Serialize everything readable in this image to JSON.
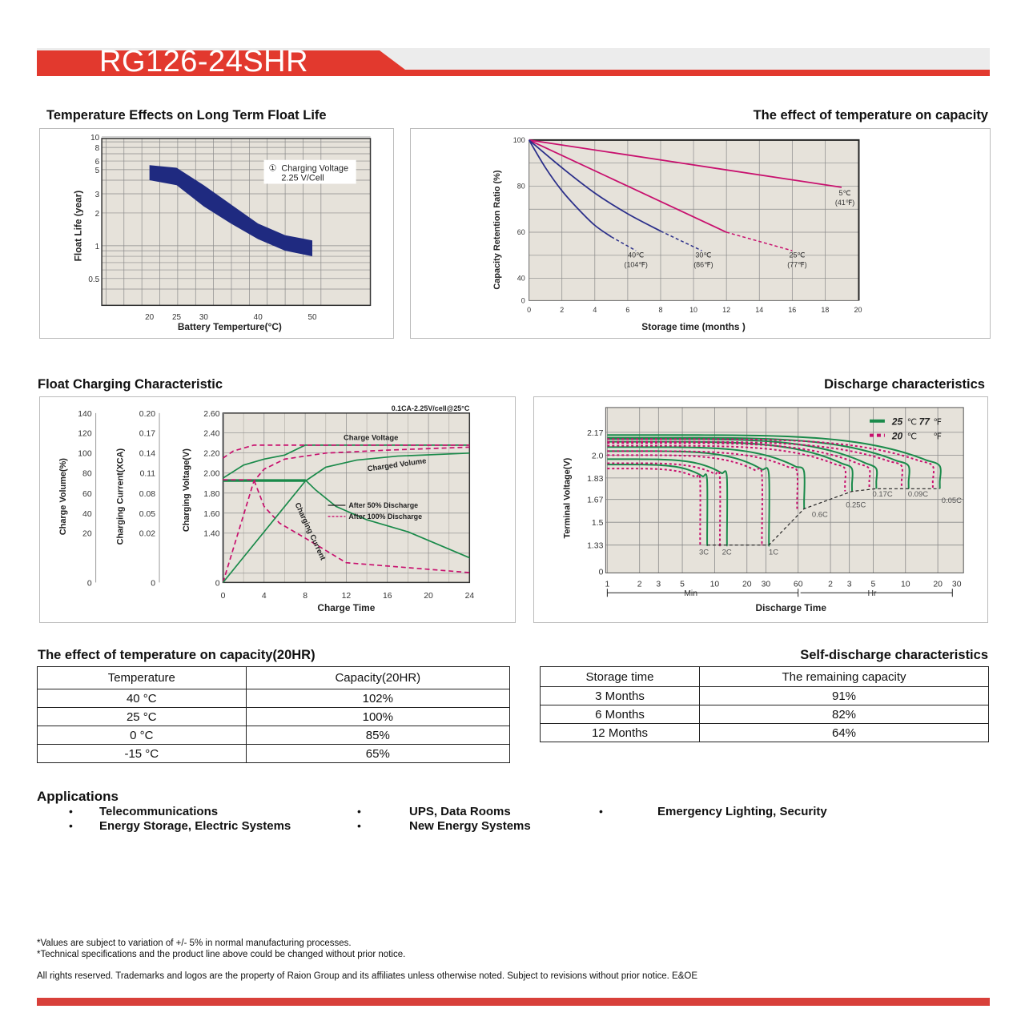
{
  "header": {
    "title": "RG126-24SHR",
    "accent": "#e2392e"
  },
  "sections": {
    "float_life_title": "Temperature Effects on Long Term Float Life",
    "temp_capacity_title": "The effect of temperature on capacity",
    "float_charging_title": "Float Charging Characteristic",
    "discharge_title": "Discharge characteristics",
    "temp_capacity_20hr_title": "The effect of temperature on capacity(20HR)",
    "self_discharge_title": "Self-discharge characteristics"
  },
  "chart_data": [
    {
      "type": "area",
      "title": "Temperature Effects on Long Term Float Life",
      "xlabel": "Battery Temperture(°C)",
      "ylabel": "Float Life (year)",
      "yscale": "log",
      "xticks": [
        20,
        25,
        30,
        40,
        50
      ],
      "yticks": [
        10,
        8,
        6,
        5,
        3,
        2,
        1,
        0.5
      ],
      "annotation_num": "①",
      "annotation": "Charging Voltage",
      "annotation2": "2.25 V/Cell",
      "upper": [
        [
          20,
          5.5
        ],
        [
          25,
          5.2
        ],
        [
          30,
          3.6
        ],
        [
          35,
          2.4
        ],
        [
          40,
          1.6
        ],
        [
          45,
          1.25
        ],
        [
          50,
          1.12
        ]
      ],
      "lower": [
        [
          20,
          4.0
        ],
        [
          25,
          3.6
        ],
        [
          30,
          2.3
        ],
        [
          35,
          1.6
        ],
        [
          40,
          1.15
        ],
        [
          45,
          0.9
        ],
        [
          50,
          0.8
        ]
      ],
      "color": "#1f2a80"
    },
    {
      "type": "line",
      "title": "The effect of temperature on capacity",
      "xlabel": "Storage time (months )",
      "ylabel": "Capacity Retention Ratio (%)",
      "xticks": [
        0,
        2,
        4,
        6,
        8,
        10,
        12,
        14,
        16,
        18,
        20
      ],
      "yticks": [
        100,
        80,
        60,
        40,
        0
      ],
      "series": [
        {
          "name": "5℃",
          "name2": "(41℉)",
          "color": "#c8106e",
          "solid": [
            [
              0,
              100
            ],
            [
              19,
              79.5
            ]
          ],
          "dashed": [],
          "label_at": [
            19.2,
            76
          ]
        },
        {
          "name": "25℃",
          "name2": "(77℉)",
          "color": "#c8106e",
          "solid": [
            [
              0,
              100
            ],
            [
              12,
              60
            ]
          ],
          "dashed": [
            [
              12,
              60
            ],
            [
              16,
              52
            ]
          ],
          "label_at": [
            16.3,
            49
          ]
        },
        {
          "name": "30℃",
          "name2": "(86℉)",
          "color": "#2b2f8a",
          "solid": [
            [
              0,
              100
            ],
            [
              2,
              88
            ],
            [
              4,
              77
            ],
            [
              6,
              68
            ],
            [
              8,
              60.5
            ]
          ],
          "dashed": [
            [
              8,
              60.5
            ],
            [
              10.5,
              52
            ]
          ],
          "label_at": [
            10.6,
            49
          ]
        },
        {
          "name": "40℃",
          "name2": "(104℉)",
          "color": "#2b2f8a",
          "solid": [
            [
              0,
              100
            ],
            [
              1,
              88
            ],
            [
              2,
              78
            ],
            [
              3,
              70
            ],
            [
              4,
              63
            ],
            [
              5,
              58
            ]
          ],
          "dashed": [
            [
              5,
              58
            ],
            [
              6.5,
              52
            ]
          ],
          "label_at": [
            6.5,
            49
          ]
        }
      ]
    },
    {
      "type": "line",
      "title": "Float Charging Characteristic",
      "xlabel": "Charge Time",
      "condition": "0.1CA-2.25V/cell@25°C",
      "y1label": "Charge Volume(%)",
      "y2label": "Charging Current(XCA)",
      "y3label": "Charging Voltage(V)",
      "y1ticks": [
        140,
        120,
        100,
        80,
        60,
        40,
        20,
        0
      ],
      "y2ticks": [
        "0.20",
        "0.17",
        "0.14",
        "0.11",
        "0.08",
        "0.05",
        "0.02",
        "0"
      ],
      "y3ticks": [
        "2.60",
        "2.40",
        "2.20",
        "2.00",
        "1.80",
        "1.60",
        "1.40",
        "0"
      ],
      "xticks": [
        0,
        4,
        8,
        12,
        16,
        20,
        24
      ],
      "labels": {
        "voltage": "Charge Voltage",
        "volume": "Charged Volume",
        "current": "Charging Current"
      },
      "legend": [
        {
          "name": "After 50%  Discharge",
          "color": "#222",
          "dash": false
        },
        {
          "name": "After 100% Discharge",
          "color": "#c8106e",
          "dash": true
        }
      ],
      "series": [
        {
          "name": "voltage-after-50",
          "axis": "V",
          "color": "#1a8a4a",
          "dash": false,
          "points": [
            [
              0,
              1.95
            ],
            [
              2,
              2.08
            ],
            [
              4,
              2.14
            ],
            [
              6,
              2.18
            ],
            [
              8,
              2.28
            ],
            [
              24,
              2.28
            ]
          ]
        },
        {
          "name": "current-after-50",
          "axis": "A",
          "color": "#1a8a4a",
          "dash": false,
          "points": [
            [
              0,
              0.1
            ],
            [
              8,
              0.1
            ],
            [
              9,
              0.085
            ],
            [
              11,
              0.06
            ],
            [
              14,
              0.04
            ],
            [
              18,
              0.022
            ],
            [
              24,
              0.01
            ]
          ]
        },
        {
          "name": "volume-after-50",
          "axis": "P",
          "color": "#1a8a4a",
          "dash": false,
          "points": [
            [
              0,
              72
            ],
            [
              8,
              72
            ],
            [
              10,
              86
            ],
            [
              13,
              93
            ],
            [
              17,
              97
            ],
            [
              24,
              100
            ]
          ]
        },
        {
          "name": "voltage-after-100",
          "axis": "V",
          "color": "#c8106e",
          "dash": true,
          "points": [
            [
              0,
              2.15
            ],
            [
              1,
              2.22
            ],
            [
              3,
              2.28
            ],
            [
              24,
              2.28
            ]
          ]
        },
        {
          "name": "current-after-100",
          "axis": "A",
          "color": "#c8106e",
          "dash": true,
          "points": [
            [
              0,
              0.1
            ],
            [
              3,
              0.1
            ],
            [
              4,
              0.06
            ],
            [
              5.5,
              0.035
            ],
            [
              8,
              0.018
            ],
            [
              12,
              0.008
            ],
            [
              24,
              0.004
            ]
          ]
        },
        {
          "name": "volume-after-100",
          "axis": "P",
          "color": "#c8106e",
          "dash": true,
          "points": [
            [
              0,
              0
            ],
            [
              3,
              72
            ],
            [
              4,
              84
            ],
            [
              6,
              94
            ],
            [
              10,
              100
            ],
            [
              16,
              103
            ],
            [
              24,
              106
            ]
          ]
        },
        {
          "name": "volume-start-50",
          "axis": "P",
          "color": "#1a8a4a",
          "dash": false,
          "points": [
            [
              0,
              0
            ],
            [
              8,
              72
            ]
          ]
        }
      ]
    },
    {
      "type": "line",
      "title": "Discharge characteristics",
      "xlabel": "Discharge Time",
      "ylabel": "Terminal Voltage(V)",
      "xscale": "log (minutes)",
      "yticks": [
        "2.17",
        "2.0",
        "1.83",
        "1.67",
        "1.5",
        "1.33",
        "0"
      ],
      "xticks_min": [
        "1",
        "2",
        "3",
        "5",
        "10",
        "20",
        "30",
        "60"
      ],
      "xticks_hr": [
        "2",
        "3",
        "5",
        "10",
        "20",
        "30"
      ],
      "min_label": "Min",
      "hr_label": "Hr",
      "legend": [
        {
          "name": "25",
          "unit": "℃",
          "name2": "77",
          "unit2": "℉",
          "color": "#1a8a4a"
        },
        {
          "name": "20",
          "unit": "℃",
          "name2": "",
          "unit2": "℉",
          "color": "#c8106e"
        }
      ],
      "series": [
        {
          "rate": "3C",
          "v0": 1.93,
          "end_min": 8.5,
          "v_end": 1.33,
          "knee": 1.82
        },
        {
          "rate": "2C",
          "v0": 1.97,
          "end_min": 13,
          "v_end": 1.33,
          "knee": 1.84
        },
        {
          "rate": "1C",
          "v0": 2.03,
          "end_min": 32,
          "v_end": 1.33,
          "knee": 1.86
        },
        {
          "rate": "0.6C",
          "v0": 2.06,
          "end_min": 68,
          "v_end": 1.6,
          "knee": 1.88
        },
        {
          "rate": "0.25C",
          "v0": 2.1,
          "end_min": 190,
          "v_end": 1.73,
          "knee": 1.9
        },
        {
          "rate": "0.17C",
          "v0": 2.12,
          "end_min": 320,
          "v_end": 1.75,
          "knee": 1.9
        },
        {
          "rate": "0.09C",
          "v0": 2.13,
          "end_min": 640,
          "v_end": 1.75,
          "knee": 1.92
        },
        {
          "rate": "0.05C",
          "v0": 2.15,
          "end_min": 1250,
          "v_end": 1.75,
          "knee": 1.92
        }
      ]
    }
  ],
  "temp_table": {
    "headers": [
      "Temperature",
      "Capacity(20HR)"
    ],
    "rows": [
      [
        "40 °C",
        "102%"
      ],
      [
        "25 °C",
        "100%"
      ],
      [
        "0 °C",
        "85%"
      ],
      [
        "-15 °C",
        "65%"
      ]
    ]
  },
  "self_table": {
    "headers": [
      "Storage time",
      "The remaining capacity"
    ],
    "rows": [
      [
        "3 Months",
        "91%"
      ],
      [
        "6 Months",
        "82%"
      ],
      [
        "12 Months",
        "64%"
      ]
    ]
  },
  "applications": {
    "title": "Applications",
    "bullet": "•",
    "items": [
      "Telecommunications",
      "UPS, Data Rooms",
      "Emergency Lighting, Security",
      "Energy Storage, Electric Systems",
      "New Energy Systems"
    ]
  },
  "footnotes": [
    "*Values are subject to variation of +/- 5% in normal manufacturing processes.",
    "*Technical specifications and the product line above could be changed without prior notice.",
    "All rights reserved. Trademarks and logos are the property of Raion Group and its affiliates unless otherwise noted. Subject to revisions without prior notice. E&OE"
  ]
}
